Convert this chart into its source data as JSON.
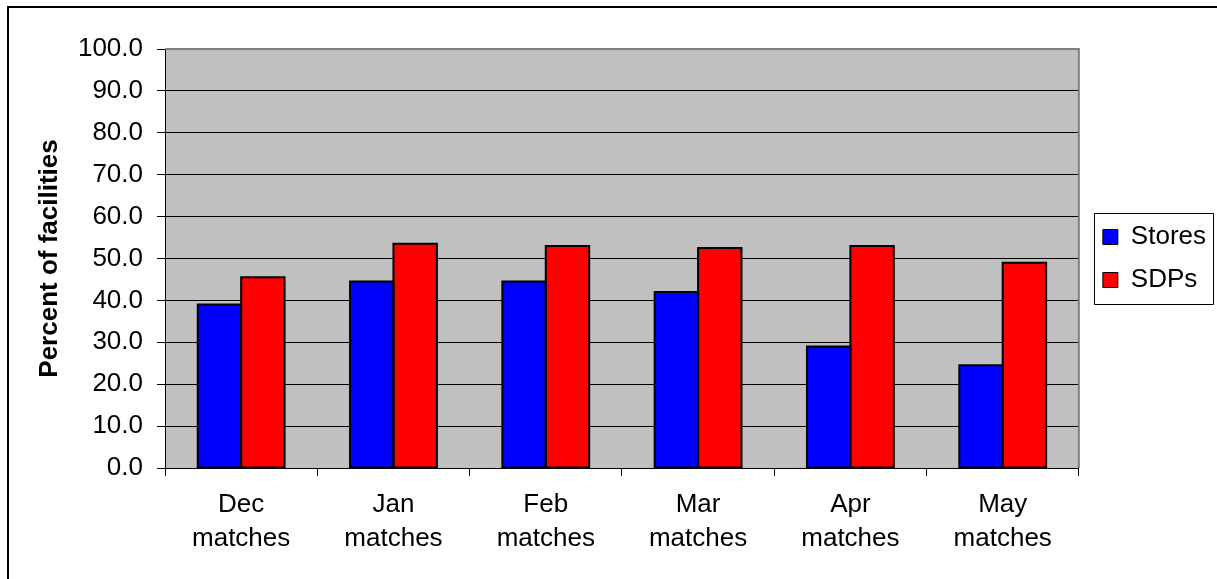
{
  "chart_data": {
    "type": "bar",
    "ylabel": "Percent of facilities",
    "categories": [
      "Dec matches",
      "Jan matches",
      "Feb matches",
      "Mar matches",
      "Apr matches",
      "May matches"
    ],
    "series": [
      {
        "name": "Stores",
        "color": "#0000ff",
        "values": [
          39,
          44.5,
          44.5,
          42,
          29,
          24.5
        ]
      },
      {
        "name": "SDPs",
        "color": "#ff0000",
        "values": [
          45.5,
          53.5,
          53,
          52.5,
          53,
          49
        ]
      }
    ],
    "ylim": [
      0,
      100
    ],
    "yticks": [
      {
        "value": 0,
        "label": "0.0"
      },
      {
        "value": 10,
        "label": "10.0"
      },
      {
        "value": 20,
        "label": "20.0"
      },
      {
        "value": 30,
        "label": "30.0"
      },
      {
        "value": 40,
        "label": "40.0"
      },
      {
        "value": 50,
        "label": "50.0"
      },
      {
        "value": 60,
        "label": "60.0"
      },
      {
        "value": 70,
        "label": "70.0"
      },
      {
        "value": 80,
        "label": "80.0"
      },
      {
        "value": 90,
        "label": "90.0"
      },
      {
        "value": 100,
        "label": "100.0"
      }
    ],
    "grid": "y",
    "legend": "right"
  }
}
